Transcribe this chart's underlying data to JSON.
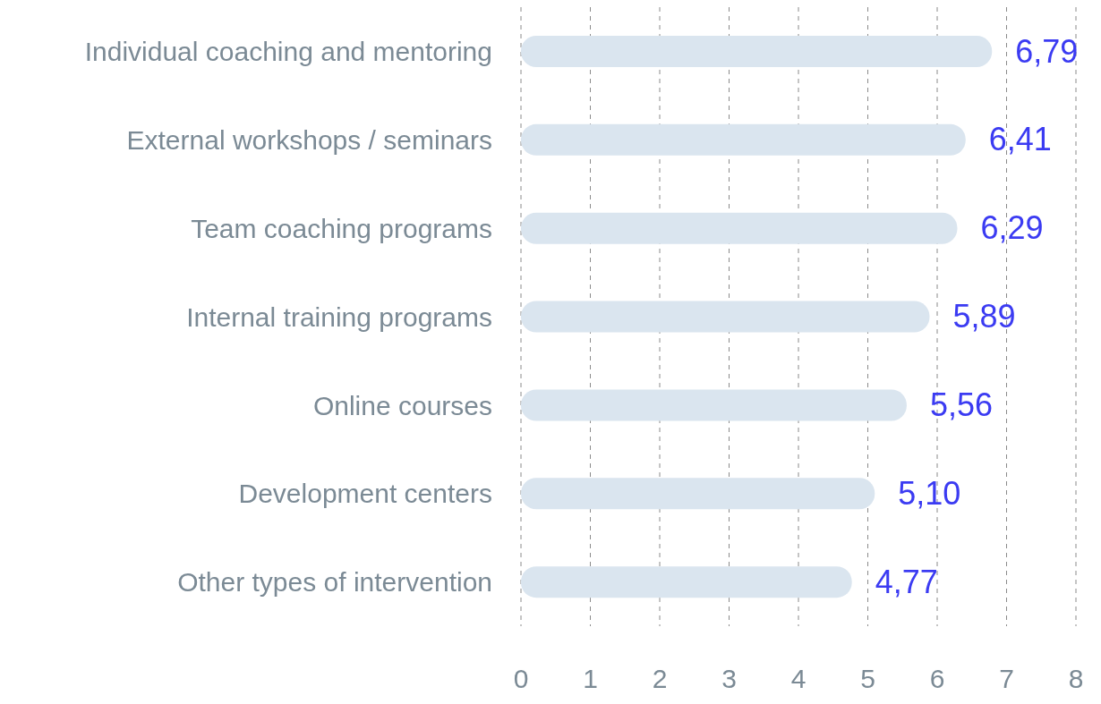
{
  "chart_data": {
    "type": "bar",
    "orientation": "horizontal",
    "categories": [
      "Individual coaching and mentoring",
      "External workshops / seminars",
      "Team coaching programs",
      "Internal training programs",
      "Online courses",
      "Development centers",
      "Other types of intervention"
    ],
    "values": [
      6.79,
      6.41,
      6.29,
      5.89,
      5.56,
      5.1,
      4.77
    ],
    "value_labels": [
      "6,79",
      "6,41",
      "6,29",
      "5,89",
      "5,56",
      "5,10",
      "4,77"
    ],
    "color": "#dae5ef",
    "xlim": [
      0,
      8
    ],
    "xticks": [
      0,
      1,
      2,
      3,
      4,
      5,
      6,
      7,
      8
    ],
    "grid": "x"
  }
}
